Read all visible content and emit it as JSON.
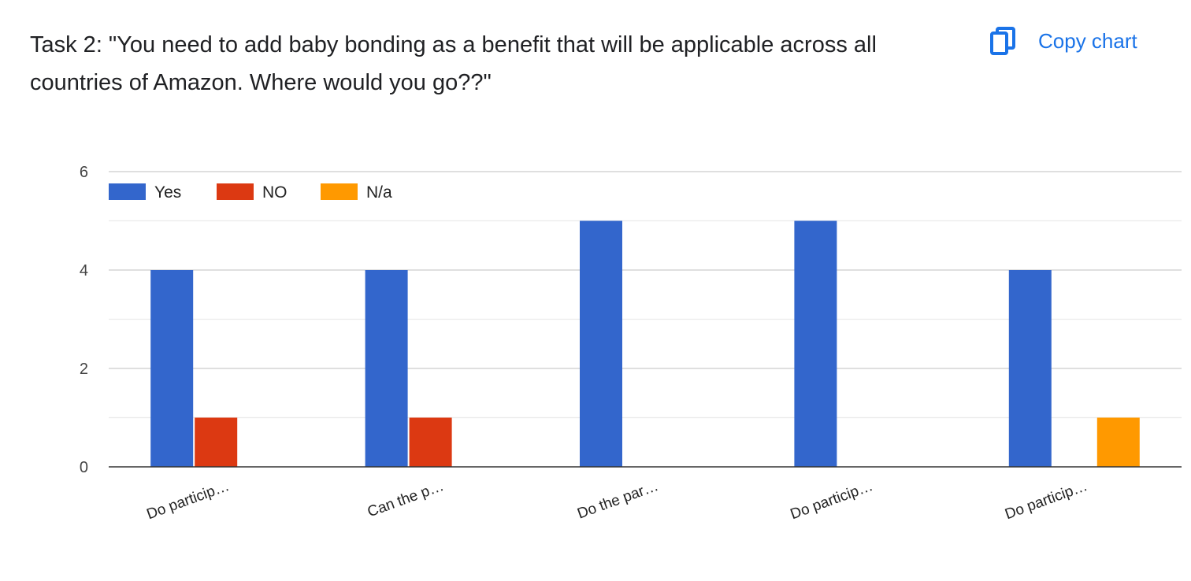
{
  "header": {
    "title": "Task 2: \"You need to add baby bonding as a benefit that will be applicable across all countries of Amazon. Where would you go??\"",
    "copy_label": "Copy chart",
    "copy_icon": "copy-icon",
    "accent_color": "#1a73e8"
  },
  "chart_data": {
    "type": "bar",
    "title": "",
    "xlabel": "",
    "ylabel": "",
    "ylim": [
      0,
      6
    ],
    "yticks": [
      0,
      2,
      4,
      6
    ],
    "grid": true,
    "legend_position": "top-left",
    "categories": [
      "Do particip…",
      "Can the p…",
      "Do the par…",
      "Do particip…",
      "Do particip…"
    ],
    "series": [
      {
        "name": "Yes",
        "color": "#3366cc",
        "values": [
          4,
          4,
          5,
          5,
          4
        ]
      },
      {
        "name": "NO",
        "color": "#dc3912",
        "values": [
          1,
          1,
          0,
          0,
          0
        ]
      },
      {
        "name": "N/a",
        "color": "#ff9900",
        "values": [
          0,
          0,
          0,
          0,
          1
        ]
      }
    ]
  }
}
